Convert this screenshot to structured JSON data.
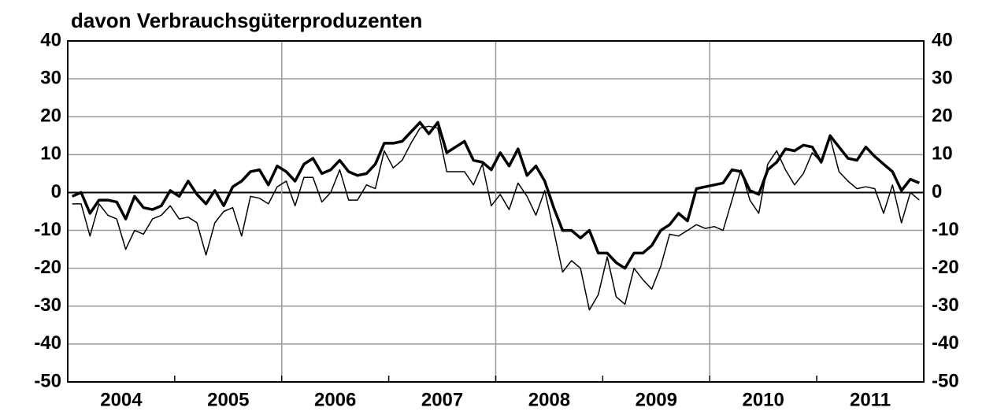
{
  "chart_data": {
    "type": "line",
    "title": "davon Verbrauchsgüterproduzenten",
    "xlim": [
      2004,
      2012
    ],
    "xticks": [
      2005,
      2006,
      2007,
      2008,
      2009,
      2010,
      2011
    ],
    "xgrid": [
      2006,
      2008,
      2010
    ],
    "x_labels": [
      {
        "value": 2004.5,
        "label": "2004"
      },
      {
        "value": 2005.5,
        "label": "2005"
      },
      {
        "value": 2006.5,
        "label": "2006"
      },
      {
        "value": 2007.5,
        "label": "2007"
      },
      {
        "value": 2008.5,
        "label": "2008"
      },
      {
        "value": 2009.5,
        "label": "2009"
      },
      {
        "value": 2010.5,
        "label": "2010"
      },
      {
        "value": 2011.5,
        "label": "2011"
      }
    ],
    "x": [
      2004.042,
      2004.125,
      2004.208,
      2004.292,
      2004.375,
      2004.458,
      2004.542,
      2004.625,
      2004.708,
      2004.792,
      2004.875,
      2004.958,
      2005.042,
      2005.125,
      2005.208,
      2005.292,
      2005.375,
      2005.458,
      2005.542,
      2005.625,
      2005.708,
      2005.792,
      2005.875,
      2005.958,
      2006.042,
      2006.125,
      2006.208,
      2006.292,
      2006.375,
      2006.458,
      2006.542,
      2006.625,
      2006.708,
      2006.792,
      2006.875,
      2006.958,
      2007.042,
      2007.125,
      2007.208,
      2007.292,
      2007.375,
      2007.458,
      2007.542,
      2007.625,
      2007.708,
      2007.792,
      2007.875,
      2007.958,
      2008.042,
      2008.125,
      2008.208,
      2008.292,
      2008.375,
      2008.458,
      2008.542,
      2008.625,
      2008.708,
      2008.792,
      2008.875,
      2008.958,
      2009.042,
      2009.125,
      2009.208,
      2009.292,
      2009.375,
      2009.458,
      2009.542,
      2009.625,
      2009.708,
      2009.792,
      2009.875,
      2009.958,
      2010.042,
      2010.125,
      2010.208,
      2010.292,
      2010.375,
      2010.458,
      2010.542,
      2010.625,
      2010.708,
      2010.792,
      2010.875,
      2010.958,
      2011.042,
      2011.125,
      2011.208,
      2011.292,
      2011.375,
      2011.458,
      2011.542,
      2011.625,
      2011.708,
      2011.792,
      2011.875,
      2011.958
    ],
    "series": [
      {
        "color": "#000000",
        "width": 3.5,
        "values": [
          -1,
          0,
          -5.5,
          -2,
          -2,
          -2.5,
          -7,
          -1,
          -4,
          -4.5,
          -3.5,
          0.5,
          -1,
          3,
          -0.5,
          -3,
          0.5,
          -3.5,
          1.5,
          3,
          5.5,
          6,
          2,
          7,
          5.5,
          3,
          7.5,
          9,
          5,
          6,
          8.5,
          5.5,
          4.5,
          5,
          7.5,
          13,
          13,
          13.5,
          16,
          18.5,
          15.5,
          18.5,
          10.5,
          12,
          13.5,
          8.5,
          8,
          6,
          10.5,
          7,
          11.5,
          4.5,
          7,
          3,
          -4,
          -10,
          -10,
          -12,
          -10,
          -16,
          -16,
          -18.5,
          -20,
          -16,
          -16,
          -14,
          -10,
          -8.5,
          -5.5,
          -7.5,
          1,
          1.5,
          2,
          2.5,
          6,
          5.5,
          0.5,
          -0.5,
          6,
          8,
          11.5,
          11,
          12.5,
          12,
          8,
          15,
          12,
          9,
          8.5,
          12,
          9.5,
          7.5,
          5.5,
          0.5,
          3.5,
          2.5
        ]
      },
      {
        "color": "#000000",
        "width": 1.5,
        "values": [
          -3,
          -3,
          -11.5,
          -3,
          -6,
          -7,
          -15,
          -10,
          -11,
          -7,
          -6,
          -3.5,
          -7,
          -6.5,
          -8,
          -16.5,
          -8,
          -5,
          -4,
          -11.5,
          -1,
          -1.5,
          -3,
          1.5,
          3,
          -3.5,
          4,
          4,
          -2.5,
          0,
          6,
          -2,
          -2,
          2,
          1,
          11,
          6.5,
          8.5,
          13,
          17,
          17.5,
          17,
          5.5,
          5.5,
          5.5,
          2,
          7.5,
          -3.5,
          -0.5,
          -4.5,
          2.5,
          -1,
          -6,
          0.5,
          -10,
          -21,
          -18,
          -20,
          -31,
          -27,
          -17,
          -27.5,
          -29.5,
          -20,
          -23,
          -25.5,
          -19.5,
          -11,
          -11.5,
          -10,
          -8.5,
          -9.5,
          -9,
          -10,
          -2,
          6,
          -2,
          -5.5,
          7.5,
          11,
          6,
          2,
          5,
          10.5,
          8,
          14.5,
          5.5,
          3,
          1,
          1.5,
          1,
          -5.5,
          2,
          -8,
          0,
          -2
        ]
      }
    ],
    "ylim": [
      -50,
      40
    ],
    "yticks": [
      -50,
      -40,
      -30,
      -20,
      -10,
      0,
      10,
      20,
      30,
      40
    ],
    "grid": true
  }
}
